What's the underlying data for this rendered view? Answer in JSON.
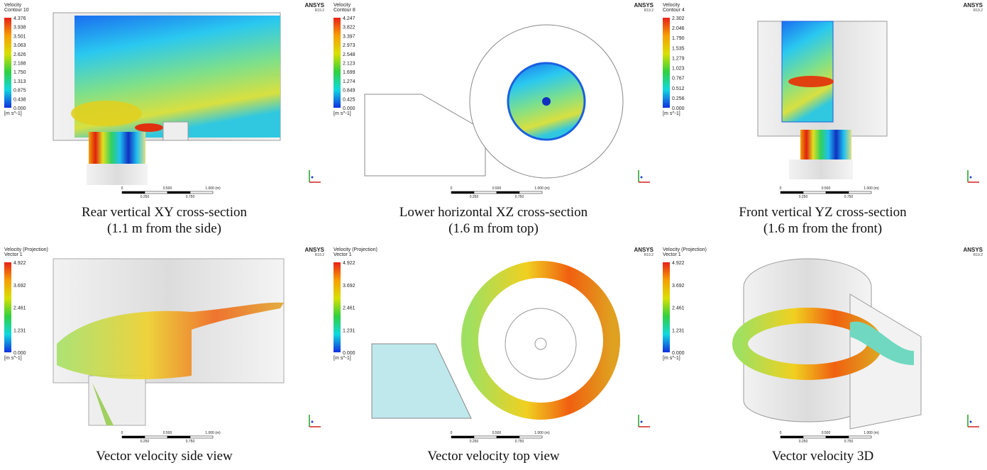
{
  "panels": [
    {
      "legend": {
        "title": [
          "Velocity",
          "Contour 10"
        ],
        "ticks": [
          "4.376",
          "3.938",
          "3.501",
          "3.063",
          "2.626",
          "2.188",
          "1.750",
          "1.313",
          "0.875",
          "0.438",
          "0.000"
        ],
        "unit": "[m s^-1]"
      },
      "brand": "ANSYS",
      "version": "R19.2",
      "scale": [
        "0",
        "0.500",
        "1.000 (m)",
        "0.250",
        "0.750"
      ],
      "caption": [
        "Rear vertical XY cross-section",
        "(1.1 m from the side)"
      ]
    },
    {
      "legend": {
        "title": [
          "Velocity",
          "Contour 8"
        ],
        "ticks": [
          "4.247",
          "3.822",
          "3.397",
          "2.973",
          "2.548",
          "2.123",
          "1.699",
          "1.274",
          "0.849",
          "0.425",
          "0.000"
        ],
        "unit": "[m s^-1]"
      },
      "brand": "ANSYS",
      "version": "R19.2",
      "scale": [
        "0",
        "0.500",
        "1.000 (m)",
        "0.250",
        "0.750"
      ],
      "caption": [
        "Lower horizontal XZ cross-section",
        "(1.6 m from top)"
      ]
    },
    {
      "legend": {
        "title": [
          "Velocity",
          "Contour 4"
        ],
        "ticks": [
          "2.302",
          "2.046",
          "1.790",
          "1.535",
          "1.279",
          "1.023",
          "0.767",
          "0.512",
          "0.256",
          "0.000"
        ],
        "unit": "[m s^-1]"
      },
      "brand": "ANSYS",
      "version": "R19.2",
      "scale": [
        "0",
        "0.500",
        "1.000 (m)",
        "0.250",
        "0.750"
      ],
      "caption": [
        "Front vertical YZ cross-section",
        "(1.6 m from the front)"
      ]
    },
    {
      "legend": {
        "title": [
          "Velocity (Projection)",
          "Vector 1"
        ],
        "ticks": [
          "4.922",
          "3.692",
          "2.461",
          "1.231",
          "0.000"
        ],
        "unit": "[m s^-1]"
      },
      "brand": "ANSYS",
      "version": "R19.2",
      "scale": [
        "0",
        "0.500",
        "1.000 (m)",
        "0.250",
        "0.750"
      ],
      "caption": [
        "Vector velocity side view"
      ]
    },
    {
      "legend": {
        "title": [
          "Velocity (Projection)",
          "Vector 1"
        ],
        "ticks": [
          "4.922",
          "3.692",
          "2.461",
          "1.231",
          "0.000"
        ],
        "unit": "[m s^-1]"
      },
      "brand": "ANSYS",
      "version": "R19.2",
      "scale": [
        "0",
        "0.500",
        "1.000 (m)",
        "0.250",
        "0.750"
      ],
      "caption": [
        "Vector velocity top view"
      ]
    },
    {
      "legend": {
        "title": [
          "Velocity (Projection)",
          "Vector 1"
        ],
        "ticks": [
          "4.922",
          "3.692",
          "2.461",
          "1.231",
          "0.000"
        ],
        "unit": "[m s^-1]"
      },
      "brand": "ANSYS",
      "version": "R19.2",
      "scale": [
        "0",
        "0.500",
        "1.000 (m)",
        "0.250",
        "0.750"
      ],
      "caption": [
        "Vector velocity 3D"
      ]
    }
  ]
}
